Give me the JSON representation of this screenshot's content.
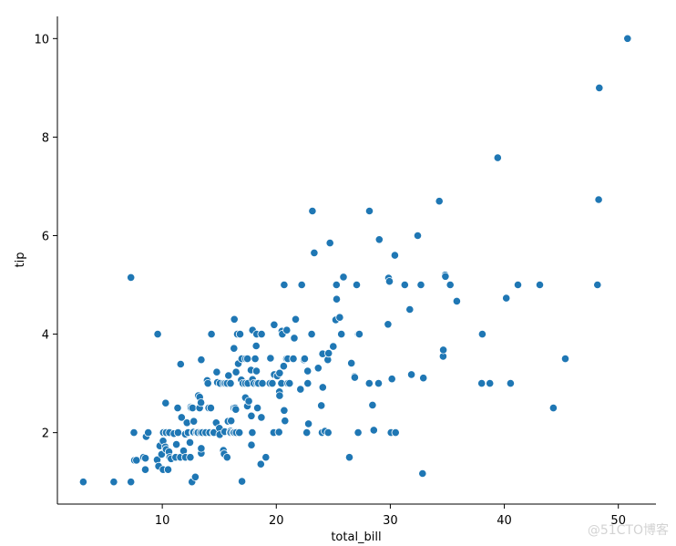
{
  "chart_data": {
    "type": "scatter",
    "title": "",
    "xlabel": "total_bill",
    "ylabel": "tip",
    "xlim": [
      0.8,
      53.3
    ],
    "ylim": [
      0.55,
      10.45
    ],
    "xticks": [
      10,
      20,
      30,
      40,
      50
    ],
    "yticks": [
      2,
      4,
      6,
      8,
      10
    ],
    "grid": false,
    "marker_color": "#1f77b4",
    "marker_edge_color": "#ffffff",
    "points": [
      [
        3.07,
        1.0
      ],
      [
        5.75,
        1.0
      ],
      [
        7.25,
        1.0
      ],
      [
        7.25,
        5.15
      ],
      [
        7.51,
        2.0
      ],
      [
        7.56,
        1.44
      ],
      [
        7.74,
        1.44
      ],
      [
        8.35,
        1.5
      ],
      [
        8.51,
        1.25
      ],
      [
        8.52,
        1.48
      ],
      [
        8.58,
        1.92
      ],
      [
        8.77,
        2.0
      ],
      [
        9.55,
        1.45
      ],
      [
        9.6,
        4.0
      ],
      [
        9.68,
        1.32
      ],
      [
        9.78,
        1.73
      ],
      [
        9.94,
        1.56
      ],
      [
        10.07,
        1.83
      ],
      [
        10.07,
        1.25
      ],
      [
        10.09,
        2.0
      ],
      [
        10.27,
        1.71
      ],
      [
        10.29,
        2.6
      ],
      [
        10.33,
        2.0
      ],
      [
        10.34,
        1.66
      ],
      [
        10.34,
        2.0
      ],
      [
        10.51,
        1.25
      ],
      [
        10.59,
        1.61
      ],
      [
        10.63,
        2.0
      ],
      [
        10.65,
        1.5
      ],
      [
        10.77,
        1.47
      ],
      [
        11.02,
        1.98
      ],
      [
        11.17,
        1.5
      ],
      [
        11.24,
        1.76
      ],
      [
        11.35,
        2.5
      ],
      [
        11.38,
        2.0
      ],
      [
        11.59,
        1.5
      ],
      [
        11.61,
        3.39
      ],
      [
        11.69,
        2.31
      ],
      [
        11.87,
        1.63
      ],
      [
        12.02,
        1.97
      ],
      [
        12.03,
        1.5
      ],
      [
        12.16,
        2.2
      ],
      [
        12.26,
        2.0
      ],
      [
        12.43,
        1.8
      ],
      [
        12.46,
        1.5
      ],
      [
        12.48,
        2.52
      ],
      [
        12.54,
        2.5
      ],
      [
        12.6,
        1.0
      ],
      [
        12.66,
        2.5
      ],
      [
        12.69,
        2.0
      ],
      [
        12.74,
        2.01
      ],
      [
        12.76,
        2.23
      ],
      [
        12.9,
        1.1
      ],
      [
        13.0,
        2.0
      ],
      [
        13.03,
        2.0
      ],
      [
        13.13,
        2.0
      ],
      [
        13.16,
        2.75
      ],
      [
        13.27,
        2.5
      ],
      [
        13.28,
        2.72
      ],
      [
        13.37,
        2.0
      ],
      [
        13.39,
        2.61
      ],
      [
        13.42,
        3.48
      ],
      [
        13.42,
        1.58
      ],
      [
        13.42,
        1.68
      ],
      [
        13.51,
        2.0
      ],
      [
        13.81,
        2.0
      ],
      [
        13.94,
        3.06
      ],
      [
        14.0,
        3.0
      ],
      [
        14.07,
        2.5
      ],
      [
        14.15,
        2.0
      ],
      [
        14.26,
        2.5
      ],
      [
        14.31,
        4.0
      ],
      [
        14.48,
        2.0
      ],
      [
        14.52,
        2.0
      ],
      [
        14.73,
        2.2
      ],
      [
        14.78,
        3.23
      ],
      [
        14.83,
        3.02
      ],
      [
        15.01,
        2.09
      ],
      [
        15.04,
        1.96
      ],
      [
        15.06,
        3.0
      ],
      [
        15.36,
        1.64
      ],
      [
        15.38,
        3.0
      ],
      [
        15.42,
        1.57
      ],
      [
        15.48,
        2.02
      ],
      [
        15.53,
        3.0
      ],
      [
        15.69,
        3.0
      ],
      [
        15.69,
        1.5
      ],
      [
        15.77,
        2.23
      ],
      [
        15.81,
        3.16
      ],
      [
        15.95,
        2.0
      ],
      [
        15.98,
        2.03
      ],
      [
        15.98,
        3.0
      ],
      [
        16.0,
        2.0
      ],
      [
        16.04,
        2.24
      ],
      [
        16.21,
        2.0
      ],
      [
        16.27,
        2.5
      ],
      [
        16.29,
        3.71
      ],
      [
        16.31,
        2.0
      ],
      [
        16.32,
        4.3
      ],
      [
        16.4,
        2.5
      ],
      [
        16.45,
        2.47
      ],
      [
        16.47,
        3.23
      ],
      [
        16.49,
        2.0
      ],
      [
        16.58,
        4.0
      ],
      [
        16.66,
        3.4
      ],
      [
        16.76,
        2.0
      ],
      [
        16.82,
        4.0
      ],
      [
        16.93,
        3.07
      ],
      [
        16.97,
        3.5
      ],
      [
        16.99,
        1.01
      ],
      [
        17.07,
        3.0
      ],
      [
        17.29,
        2.71
      ],
      [
        17.29,
        3.0
      ],
      [
        17.31,
        3.5
      ],
      [
        17.46,
        2.54
      ],
      [
        17.47,
        3.5
      ],
      [
        17.51,
        3.0
      ],
      [
        17.59,
        2.64
      ],
      [
        17.78,
        3.27
      ],
      [
        17.81,
        2.34
      ],
      [
        17.82,
        1.75
      ],
      [
        17.89,
        2.0
      ],
      [
        17.92,
        4.08
      ],
      [
        17.92,
        3.08
      ],
      [
        18.04,
        3.0
      ],
      [
        18.15,
        3.5
      ],
      [
        18.24,
        3.76
      ],
      [
        18.26,
        3.25
      ],
      [
        18.28,
        4.0
      ],
      [
        18.29,
        3.0
      ],
      [
        18.35,
        2.5
      ],
      [
        18.43,
        3.0
      ],
      [
        18.64,
        1.36
      ],
      [
        18.69,
        2.31
      ],
      [
        18.71,
        4.0
      ],
      [
        18.78,
        3.0
      ],
      [
        19.08,
        1.5
      ],
      [
        19.44,
        3.0
      ],
      [
        19.49,
        3.51
      ],
      [
        19.65,
        3.0
      ],
      [
        19.77,
        2.0
      ],
      [
        19.81,
        4.19
      ],
      [
        19.82,
        3.18
      ],
      [
        20.08,
        3.15
      ],
      [
        20.23,
        2.01
      ],
      [
        20.27,
        2.83
      ],
      [
        20.29,
        2.75
      ],
      [
        20.29,
        3.21
      ],
      [
        20.45,
        3.0
      ],
      [
        20.49,
        4.06
      ],
      [
        20.53,
        4.0
      ],
      [
        20.65,
        3.35
      ],
      [
        20.69,
        2.45
      ],
      [
        20.69,
        5.0
      ],
      [
        20.76,
        2.24
      ],
      [
        20.9,
        3.5
      ],
      [
        20.92,
        4.08
      ],
      [
        21.01,
        3.5
      ],
      [
        21.01,
        3.0
      ],
      [
        21.16,
        3.0
      ],
      [
        21.5,
        3.5
      ],
      [
        21.58,
        3.92
      ],
      [
        21.7,
        4.3
      ],
      [
        22.12,
        2.88
      ],
      [
        22.23,
        5.0
      ],
      [
        22.42,
        3.48
      ],
      [
        22.49,
        3.5
      ],
      [
        22.67,
        2.0
      ],
      [
        22.75,
        3.25
      ],
      [
        22.76,
        3.0
      ],
      [
        22.82,
        2.18
      ],
      [
        23.1,
        4.0
      ],
      [
        23.17,
        6.5
      ],
      [
        23.33,
        5.65
      ],
      [
        23.68,
        3.31
      ],
      [
        23.95,
        2.55
      ],
      [
        24.01,
        2.0
      ],
      [
        24.06,
        3.6
      ],
      [
        24.08,
        2.92
      ],
      [
        24.27,
        2.03
      ],
      [
        24.52,
        3.48
      ],
      [
        24.55,
        2.0
      ],
      [
        24.59,
        3.61
      ],
      [
        24.71,
        5.85
      ],
      [
        25.0,
        3.75
      ],
      [
        25.21,
        4.29
      ],
      [
        25.28,
        5.0
      ],
      [
        25.29,
        4.71
      ],
      [
        25.56,
        4.34
      ],
      [
        25.71,
        4.0
      ],
      [
        25.89,
        5.16
      ],
      [
        26.41,
        1.5
      ],
      [
        26.59,
        3.41
      ],
      [
        26.86,
        3.14
      ],
      [
        26.88,
        3.12
      ],
      [
        27.05,
        5.0
      ],
      [
        27.18,
        2.0
      ],
      [
        27.2,
        4.0
      ],
      [
        27.28,
        4.0
      ],
      [
        28.15,
        3.0
      ],
      [
        28.17,
        6.5
      ],
      [
        28.44,
        2.56
      ],
      [
        28.55,
        2.05
      ],
      [
        28.97,
        3.0
      ],
      [
        29.03,
        5.92
      ],
      [
        29.8,
        4.2
      ],
      [
        29.85,
        5.14
      ],
      [
        29.93,
        5.07
      ],
      [
        30.06,
        2.0
      ],
      [
        30.14,
        3.09
      ],
      [
        30.4,
        5.6
      ],
      [
        30.46,
        2.0
      ],
      [
        31.27,
        5.0
      ],
      [
        31.71,
        4.5
      ],
      [
        31.85,
        3.18
      ],
      [
        32.4,
        6.0
      ],
      [
        32.68,
        5.0
      ],
      [
        32.83,
        1.17
      ],
      [
        32.9,
        3.11
      ],
      [
        34.3,
        6.7
      ],
      [
        34.63,
        3.55
      ],
      [
        34.65,
        3.68
      ],
      [
        34.81,
        5.2
      ],
      [
        34.83,
        5.17
      ],
      [
        35.26,
        5.0
      ],
      [
        35.83,
        4.67
      ],
      [
        38.01,
        3.0
      ],
      [
        38.07,
        4.0
      ],
      [
        38.73,
        3.0
      ],
      [
        39.42,
        7.58
      ],
      [
        40.17,
        4.73
      ],
      [
        40.55,
        3.0
      ],
      [
        41.19,
        5.0
      ],
      [
        43.11,
        5.0
      ],
      [
        44.3,
        2.5
      ],
      [
        45.35,
        3.5
      ],
      [
        48.17,
        5.0
      ],
      [
        48.27,
        6.73
      ],
      [
        48.33,
        9.0
      ],
      [
        50.81,
        10.0
      ]
    ]
  },
  "watermark": "@51CTO博客"
}
